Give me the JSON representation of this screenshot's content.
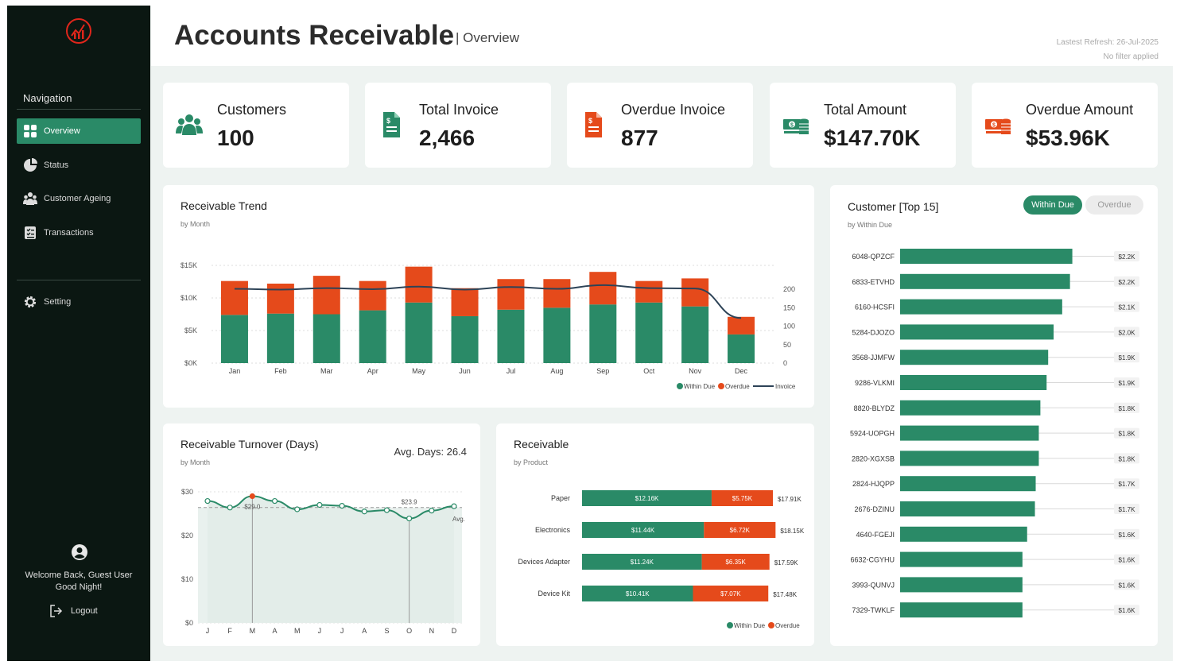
{
  "sidebar": {
    "nav_title": "Navigation",
    "items": [
      {
        "label": "Overview",
        "icon": "grid-icon"
      },
      {
        "label": "Status",
        "icon": "pie-icon"
      },
      {
        "label": "Customer Ageing",
        "icon": "people-icon"
      },
      {
        "label": "Transactions",
        "icon": "list-icon"
      }
    ],
    "setting_label": "Setting",
    "welcome_line1": "Welcome Back, Guest User",
    "welcome_line2": "Good Night!",
    "logout_label": "Logout"
  },
  "header": {
    "title": "Accounts Receivable",
    "subtitle": "| Overview",
    "refresh": "Lastest Refresh: 26-Jul-2025",
    "filter": "No filter applied"
  },
  "kpis": [
    {
      "label": "Customers",
      "value": "100",
      "icon": "people-icon",
      "color": "#2a8a67"
    },
    {
      "label": "Total Invoice",
      "value": "2,466",
      "icon": "document-icon",
      "color": "#2a8a67"
    },
    {
      "label": "Overdue Invoice",
      "value": "877",
      "icon": "document-icon",
      "color": "#e54a1b"
    },
    {
      "label": "Total Amount",
      "value": "$147.70K",
      "icon": "money-stack-icon",
      "color": "#2a8a67"
    },
    {
      "label": "Overdue Amount",
      "value": "$53.96K",
      "icon": "money-stack-icon",
      "color": "#e54a1b"
    }
  ],
  "colors": {
    "within": "#2a8a67",
    "overdue": "#e54a1b",
    "line": "#2d4357"
  },
  "trend": {
    "title": "Receivable Trend",
    "sub": "by Month",
    "legend": [
      "Within Due",
      "Overdue",
      "Invoice"
    ]
  },
  "turnover": {
    "title": "Receivable Turnover (Days)",
    "sub": "by Month",
    "avg_label": "Avg. Days: 26.4",
    "avg_tag": "Avg.",
    "max_label": "$29.0",
    "min_label": "$23.9"
  },
  "receivable": {
    "title": "Receivable",
    "sub": "by Product",
    "legend": [
      "Within Due",
      "Overdue"
    ]
  },
  "top15": {
    "title": "Customer [Top 15]",
    "sub": "by Within Due",
    "toggle_active": "Within Due",
    "toggle_inactive": "Overdue"
  },
  "chart_data": [
    {
      "type": "bar",
      "title": "Receivable Trend",
      "categories": [
        "Jan",
        "Feb",
        "Mar",
        "Apr",
        "May",
        "Jun",
        "Jul",
        "Aug",
        "Sep",
        "Oct",
        "Nov",
        "Dec"
      ],
      "series": [
        {
          "name": "Within Due",
          "values": [
            7.4,
            7.6,
            7.5,
            8.1,
            9.3,
            7.2,
            8.2,
            8.5,
            9.0,
            9.3,
            8.7,
            4.4
          ]
        },
        {
          "name": "Overdue",
          "values": [
            5.2,
            4.6,
            5.9,
            4.5,
            5.5,
            4.3,
            4.7,
            4.4,
            5.0,
            3.3,
            4.3,
            2.7
          ]
        },
        {
          "name": "Invoice",
          "axis": "right",
          "values": [
            201,
            199,
            203,
            200,
            207,
            199,
            206,
            201,
            211,
            203,
            202,
            122
          ]
        }
      ],
      "yticks": [
        "$0K",
        "$5K",
        "$10K",
        "$15K"
      ],
      "ylim": [
        0,
        15
      ],
      "y2ticks": [
        "0",
        "50",
        "100",
        "150",
        "200"
      ],
      "y2lim": [
        0,
        200
      ]
    },
    {
      "type": "line",
      "title": "Receivable Turnover (Days)",
      "categories": [
        "J",
        "F",
        "M",
        "A",
        "M",
        "J",
        "J",
        "A",
        "S",
        "O",
        "N",
        "D"
      ],
      "values": [
        27.9,
        26.4,
        29.0,
        27.9,
        26.0,
        27.0,
        26.8,
        25.5,
        25.8,
        23.9,
        25.7,
        26.7
      ],
      "average": 26.4,
      "yticks": [
        "$0",
        "$10",
        "$20",
        "$30"
      ],
      "ylim": [
        0,
        30
      ]
    },
    {
      "type": "bar",
      "title": "Receivable",
      "categories": [
        "Paper",
        "Electronics",
        "Devices Adapter",
        "Device Kit"
      ],
      "series": [
        {
          "name": "Within Due",
          "values": [
            12.16,
            11.44,
            11.24,
            10.41
          ],
          "labels": [
            "$12.16K",
            "$11.44K",
            "$11.24K",
            "$10.41K"
          ]
        },
        {
          "name": "Overdue",
          "values": [
            5.75,
            6.72,
            6.35,
            7.07
          ],
          "labels": [
            "$5.75K",
            "$6.72K",
            "$6.35K",
            "$7.07K"
          ]
        }
      ],
      "totals": [
        "$17.91K",
        "$18.15K",
        "$17.59K",
        "$17.48K"
      ]
    },
    {
      "type": "bar",
      "title": "Customer [Top 15]",
      "categories": [
        "6048-QPZCF",
        "6833-ETVHD",
        "6160-HCSFI",
        "5284-DJOZO",
        "3568-JJMFW",
        "9286-VLKMI",
        "8820-BLYDZ",
        "5924-UOPGH",
        "2820-XGXSB",
        "2824-HJQPP",
        "2676-DZINU",
        "4640-FGEJI",
        "6632-CGYHU",
        "3993-QUNVJ",
        "7329-TWKLF"
      ],
      "values": [
        2.21,
        2.18,
        2.08,
        1.97,
        1.9,
        1.88,
        1.8,
        1.78,
        1.78,
        1.74,
        1.73,
        1.63,
        1.57,
        1.57,
        1.57
      ],
      "labels": [
        "$2.2K",
        "$2.2K",
        "$2.1K",
        "$2.0K",
        "$1.9K",
        "$1.9K",
        "$1.8K",
        "$1.8K",
        "$1.8K",
        "$1.7K",
        "$1.7K",
        "$1.6K",
        "$1.6K",
        "$1.6K",
        "$1.6K"
      ]
    }
  ]
}
